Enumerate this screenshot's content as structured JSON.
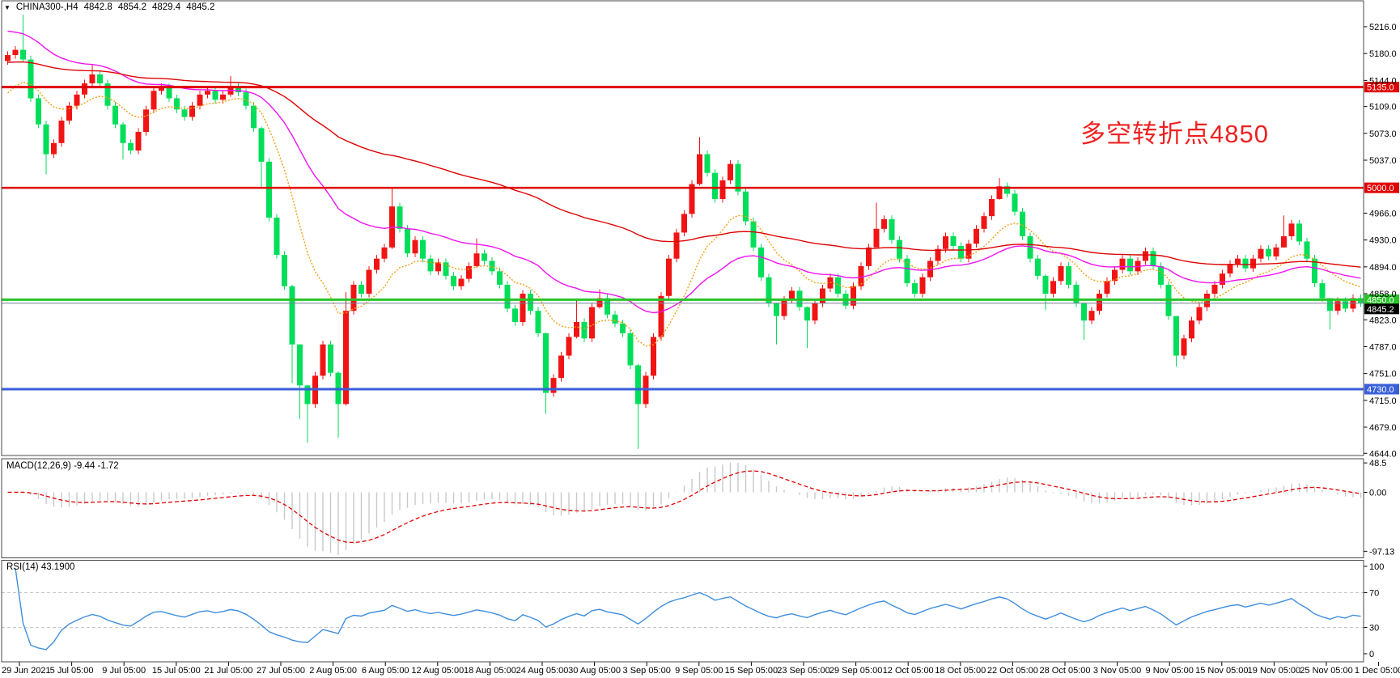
{
  "header": {
    "dropdown_icon": "▼",
    "symbol_period": "CHINA300-,H4",
    "open": "4842.8",
    "high": "4854.2",
    "low": "4829.4",
    "close": "4845.2"
  },
  "annotation": {
    "text": "多空转折点4850",
    "color": "#ee2222"
  },
  "macd": {
    "label": "MACD(12,26,9) -9.44 -1.72",
    "params": [
      12,
      26,
      9
    ],
    "value": -9.44,
    "signal_value": -1.72,
    "y_ticks": [
      {
        "label": "48.5",
        "value": 48.5
      },
      {
        "label": "0.00",
        "value": 0
      },
      {
        "label": "-97.13",
        "value": -97.13
      }
    ],
    "histogram_color": "#c9c9c9",
    "signal_color": "#e00000"
  },
  "rsi": {
    "label": "RSI(14) 43.1900",
    "period": 14,
    "value": 43.19,
    "y_ticks": [
      {
        "label": "100",
        "value": 100
      },
      {
        "label": "70",
        "value": 70
      },
      {
        "label": "30",
        "value": 30
      },
      {
        "label": "0",
        "value": 0
      }
    ],
    "level_lines": [
      70,
      30
    ],
    "line_color": "#3f8edc"
  },
  "chart_data": {
    "type": "candlestick",
    "symbol": "CHINA300-",
    "timeframe": "H4",
    "title": "CHINA300-,H4 4842.8 4854.2 4829.4 4845.2",
    "y_range": [
      4644,
      5232
    ],
    "y_ticks": [
      5216,
      5180,
      5144,
      5109,
      5073,
      5037,
      4966,
      4930,
      4894,
      4858,
      4823,
      4787,
      4751,
      4715,
      4679,
      4644
    ],
    "x_labels": [
      "29 Jun 2021",
      "5 Jul 05:00",
      "9 Jul 05:00",
      "15 Jul 05:00",
      "21 Jul 05:00",
      "27 Jul 05:00",
      "2 Aug 05:00",
      "6 Aug 05:00",
      "12 Aug 05:00",
      "18 Aug 05:00",
      "24 Aug 05:00",
      "30 Aug 05:00",
      "3 Sep 05:00",
      "9 Sep 05:00",
      "15 Sep 05:00",
      "23 Sep 05:00",
      "29 Sep 05:00",
      "12 Oct 05:00",
      "18 Oct 05:00",
      "22 Oct 05:00",
      "28 Oct 05:00",
      "3 Nov 05:00",
      "9 Nov 05:00",
      "15 Nov 05:00",
      "19 Nov 05:00",
      "25 Nov 05:00",
      "1 Dec 05:00"
    ],
    "levels": [
      {
        "value": 5135,
        "label": "5135.0",
        "color": "#e00000",
        "thickness": 3
      },
      {
        "value": 5000,
        "label": "5000.0",
        "color": "#e00000",
        "thickness": 2.5
      },
      {
        "value": 4850,
        "label": "4850.0",
        "color": "#28c428",
        "thickness": 3
      },
      {
        "value": 4730,
        "label": "4730.0",
        "color": "#3a5fd9",
        "thickness": 3
      }
    ],
    "current_price": {
      "value": 4845.2,
      "label": "4845.2",
      "line_color": "#708090",
      "box_color": "#000000"
    },
    "up_color": "#f01414",
    "down_color": "#00de5a",
    "first_open": 5170,
    "closes": [
      5178,
      5185,
      5172,
      5120,
      5085,
      5045,
      5060,
      5090,
      5110,
      5125,
      5140,
      5152,
      5140,
      5110,
      5085,
      5060,
      5050,
      5075,
      5105,
      5130,
      5135,
      5120,
      5105,
      5095,
      5110,
      5125,
      5130,
      5118,
      5125,
      5135,
      5128,
      5110,
      5080,
      5035,
      4960,
      4910,
      4868,
      4790,
      4735,
      4710,
      4748,
      4790,
      4752,
      4710,
      4835,
      4870,
      4858,
      4890,
      4905,
      4920,
      4975,
      4945,
      4912,
      4930,
      4905,
      4888,
      4900,
      4882,
      4868,
      4878,
      4895,
      4912,
      4902,
      4888,
      4870,
      4838,
      4820,
      4858,
      4835,
      4805,
      4725,
      4745,
      4775,
      4800,
      4820,
      4798,
      4840,
      4852,
      4830,
      4818,
      4805,
      4762,
      4710,
      4748,
      4800,
      4855,
      4905,
      4940,
      4965,
      5005,
      5045,
      5020,
      4985,
      5010,
      5032,
      4995,
      4955,
      4920,
      4880,
      4845,
      4828,
      4850,
      4862,
      4840,
      4822,
      4845,
      4865,
      4880,
      4858,
      4842,
      4868,
      4895,
      4920,
      4945,
      4958,
      4930,
      4905,
      4872,
      4858,
      4880,
      4902,
      4918,
      4935,
      4922,
      4905,
      4925,
      4945,
      4962,
      4985,
      5002,
      4992,
      4968,
      4935,
      4905,
      4882,
      4858,
      4875,
      4895,
      4870,
      4845,
      4822,
      4835,
      4858,
      4875,
      4890,
      4905,
      4888,
      4902,
      4915,
      4895,
      4870,
      4828,
      4775,
      4798,
      4822,
      4840,
      4858,
      4870,
      4885,
      4898,
      4905,
      4892,
      4905,
      4918,
      4908,
      4920,
      4935,
      4952,
      4928,
      4905,
      4872,
      4852,
      4835,
      4848,
      4838,
      4852,
      4845.2
    ],
    "wicks": {
      "2": [
        5232,
        5168
      ],
      "5": [
        5090,
        5018
      ],
      "11": [
        5166,
        5136
      ],
      "15": [
        5088,
        5038
      ],
      "29": [
        5150,
        5122
      ],
      "33": [
        5082,
        5000
      ],
      "37": [
        4870,
        4738
      ],
      "38": [
        4790,
        4690
      ],
      "39": [
        4736,
        4658
      ],
      "43": [
        4754,
        4665
      ],
      "44": [
        4860,
        4708
      ],
      "50": [
        4999,
        4918
      ],
      "61": [
        4932,
        4893
      ],
      "70": [
        4806,
        4697
      ],
      "74": [
        4850,
        4798
      ],
      "77": [
        4864,
        4838
      ],
      "82": [
        4764,
        4650
      ],
      "90": [
        5068,
        5003
      ],
      "100": [
        4846,
        4790
      ],
      "104": [
        4841,
        4785
      ],
      "113": [
        4980,
        4943
      ],
      "129": [
        5013,
        4984
      ],
      "135": [
        4884,
        4836
      ],
      "140": [
        4846,
        4796
      ],
      "152": [
        4828,
        4760
      ],
      "166": [
        4963,
        4920
      ],
      "172": [
        4852,
        4810
      ]
    },
    "moving_averages": [
      {
        "name": "ma-fast",
        "color": "#f0a014",
        "period": 12,
        "seed": 5118,
        "dash": "2,2"
      },
      {
        "name": "ma-mid",
        "color": "#f012f0",
        "period": 34,
        "seed": 5212,
        "dash": ""
      },
      {
        "name": "ma-slow",
        "color": "#dd0404",
        "period": 90,
        "seed": 5168,
        "dash": ""
      }
    ]
  }
}
